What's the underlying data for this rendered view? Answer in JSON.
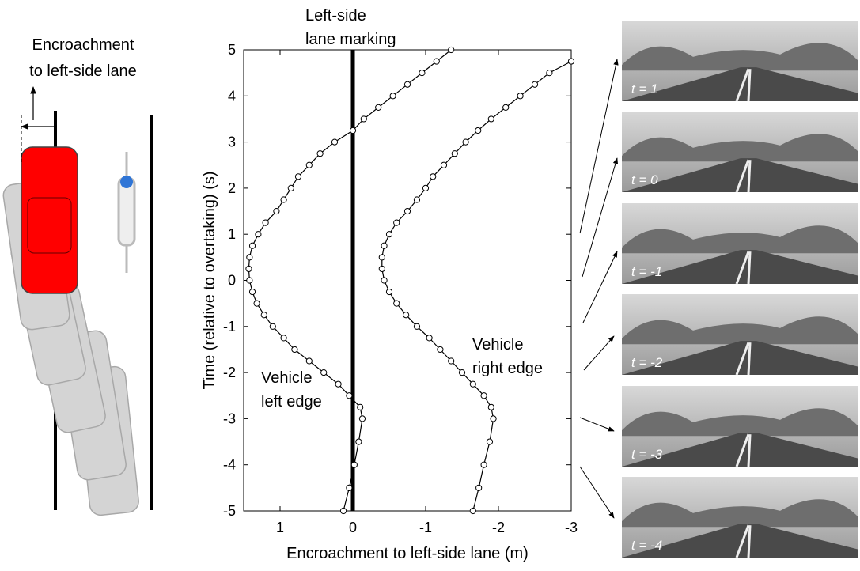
{
  "chart_data": {
    "type": "scatter",
    "xlabel": "Encroachment to left-side lane (m)",
    "ylabel": "Time (relative to overtaking) (s)",
    "xlim": [
      1.5,
      -3
    ],
    "ylim": [
      -5,
      5
    ],
    "xticks": [
      1,
      0,
      -1,
      -2,
      -3
    ],
    "yticks": [
      -5,
      -4,
      -3,
      -2,
      -1,
      0,
      1,
      2,
      3,
      4,
      5
    ],
    "lane_marking": {
      "x": 0,
      "label_lines": [
        "Left-side",
        "lane marking"
      ]
    },
    "series": [
      {
        "label_lines": [
          "Vehicle",
          "left edge"
        ],
        "color": "#000000",
        "x": [
          0.13,
          0.05,
          -0.02,
          -0.08,
          -0.13,
          -0.1,
          0.05,
          0.2,
          0.4,
          0.6,
          0.8,
          0.95,
          1.1,
          1.22,
          1.32,
          1.38,
          1.42,
          1.43,
          1.42,
          1.38,
          1.3,
          1.2,
          1.05,
          0.95,
          0.85,
          0.75,
          0.6,
          0.45,
          0.25,
          0.0,
          -0.15,
          -0.35,
          -0.55,
          -0.75,
          -0.95,
          -1.15,
          -1.35
        ],
        "y": [
          -5,
          -4.5,
          -4,
          -3.5,
          -3,
          -2.75,
          -2.5,
          -2.25,
          -2,
          -1.75,
          -1.5,
          -1.25,
          -1,
          -0.75,
          -0.5,
          -0.25,
          0,
          0.25,
          0.5,
          0.75,
          1,
          1.25,
          1.5,
          1.75,
          2,
          2.25,
          2.5,
          2.75,
          3,
          3.25,
          3.5,
          3.75,
          4,
          4.25,
          4.5,
          4.75,
          5
        ]
      },
      {
        "label_lines": [
          "Vehicle",
          "right edge"
        ],
        "color": "#000000",
        "x": [
          -1.65,
          -1.73,
          -1.8,
          -1.88,
          -1.93,
          -1.9,
          -1.8,
          -1.65,
          -1.5,
          -1.35,
          -1.2,
          -1.05,
          -0.88,
          -0.73,
          -0.6,
          -0.5,
          -0.43,
          -0.4,
          -0.4,
          -0.43,
          -0.5,
          -0.6,
          -0.75,
          -0.88,
          -1.0,
          -1.1,
          -1.25,
          -1.4,
          -1.55,
          -1.72,
          -1.9,
          -2.1,
          -2.3,
          -2.5,
          -2.7,
          -3.0
        ],
        "y": [
          -5,
          -4.5,
          -4,
          -3.5,
          -3,
          -2.75,
          -2.5,
          -2.25,
          -2,
          -1.75,
          -1.5,
          -1.25,
          -1,
          -0.75,
          -0.5,
          -0.25,
          0,
          0.25,
          0.5,
          0.75,
          1,
          1.25,
          1.5,
          1.75,
          2,
          2.25,
          2.5,
          2.75,
          3,
          3.25,
          3.5,
          3.75,
          4,
          4.25,
          4.5,
          4.75
        ]
      }
    ]
  },
  "diagram": {
    "label_lines": [
      "Encroachment",
      "to left-side lane"
    ]
  },
  "photos": [
    "t = 1",
    "t = 0",
    "t = -1",
    "t = -2",
    "t = -3",
    "t = -4"
  ]
}
